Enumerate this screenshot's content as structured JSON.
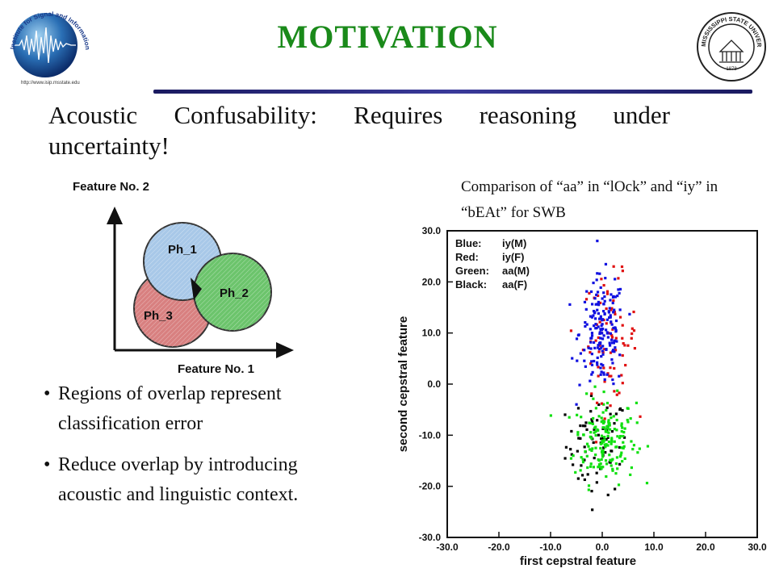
{
  "header": {
    "title": "MOTIVATION",
    "left_logo": {
      "icon": "globe-signal-logo",
      "text": "Institute for Signal and Information Processing",
      "url_text": "http://www.isip.msstate.edu"
    },
    "right_logo": {
      "icon": "university-seal-logo",
      "text": "MISSISSIPPI STATE UNIVERSITY",
      "year": "1878"
    }
  },
  "subtitle": "Acoustic Confusability: Requires reasoning under uncertainty!",
  "venn": {
    "y_label": "Feature No. 2",
    "x_label": "Feature No. 1",
    "circles": [
      {
        "label": "Ph_1",
        "color": "#a8c8e8"
      },
      {
        "label": "Ph_2",
        "color": "#6cc46c"
      },
      {
        "label": "Ph_3",
        "color": "#d88080"
      }
    ]
  },
  "bullets": [
    "Regions of overlap represent classification error",
    "Reduce overlap by introducing acoustic and linguistic context."
  ],
  "caption": "Comparison of “aa” in “lOck” and “iy” in “bEAt” for SWB",
  "chart_data": {
    "type": "scatter",
    "xlabel": "first cepstral feature",
    "ylabel": "second cepstral feature",
    "xlim": [
      -30,
      30
    ],
    "ylim": [
      -30,
      30
    ],
    "xticks": [
      "-30.0",
      "-20.0",
      "-10.0",
      "0.0",
      "10.0",
      "20.0",
      "30.0"
    ],
    "yticks": [
      "30.0",
      "20.0",
      "10.0",
      "0.0",
      "-10.0",
      "-20.0",
      "-30.0"
    ],
    "grid": false,
    "legend": [
      {
        "label": "Blue:",
        "value": "iy(M)"
      },
      {
        "label": "Red:",
        "value": "iy(F)"
      },
      {
        "label": "Green:",
        "value": "aa(M)"
      },
      {
        "label": "Black:",
        "value": "aa(F)"
      }
    ],
    "legend_position": "top-left",
    "series": [
      {
        "color": "#1010e0",
        "cluster_center": [
          0,
          10
        ],
        "cluster_spread": [
          2.2,
          5.5
        ],
        "points": 170
      },
      {
        "color": "#e01010",
        "cluster_center": [
          1.5,
          9
        ],
        "cluster_spread": [
          2.6,
          6
        ],
        "points": 80
      },
      {
        "color": "#10e010",
        "cluster_center": [
          0.5,
          -11
        ],
        "cluster_spread": [
          3,
          4.2
        ],
        "points": 170
      },
      {
        "color": "#000000",
        "cluster_center": [
          -1,
          -12
        ],
        "cluster_spread": [
          3,
          4.8
        ],
        "points": 70
      }
    ]
  }
}
